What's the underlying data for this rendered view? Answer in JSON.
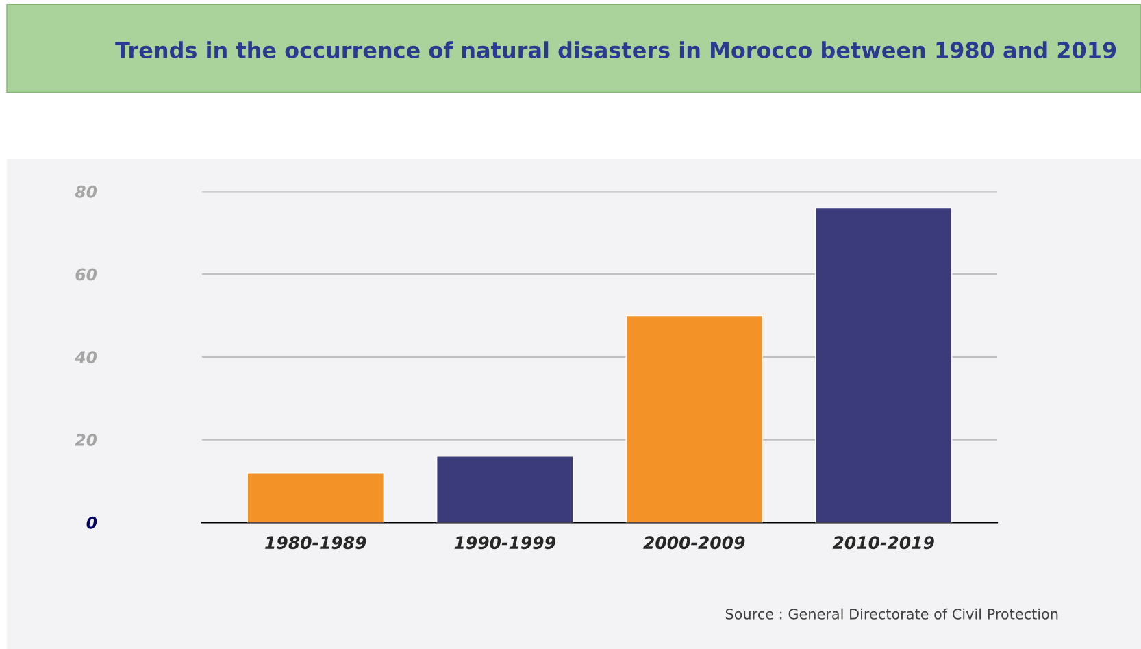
{
  "chart_data": {
    "type": "bar",
    "title": "Trends in the occurrence of natural disasters in Morocco between 1980 and 2019",
    "categories": [
      "1980-1989",
      "1990-1999",
      "2000-2009",
      "2010-2019"
    ],
    "values": [
      12,
      16,
      50,
      76
    ],
    "colors": [
      "#f29227",
      "#3b3a7a",
      "#f29227",
      "#3b3a7a"
    ],
    "ylim": [
      0,
      80
    ],
    "yticks": [
      0,
      20,
      40,
      60,
      80
    ],
    "grid": "y",
    "legend": false,
    "annotations": [
      "Source : General Directorate of Civil Protection"
    ]
  }
}
